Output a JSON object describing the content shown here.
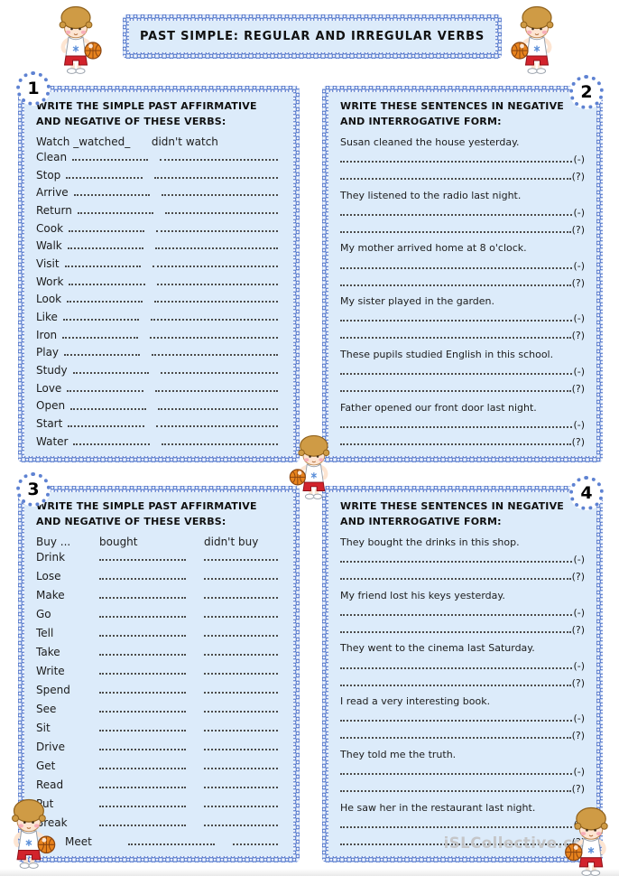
{
  "page": {
    "title": "PAST SIMPLE: REGULAR AND IRREGULAR VERBS",
    "watermark": "iSLCollective.com",
    "accent_color": "#5577cb",
    "panel_fill": "#dcebfa"
  },
  "exercises": [
    {
      "number": "1",
      "instructions": "WRITE THE SIMPLE PAST AFFIRMATIVE AND NEGATIVE OF THESE VERBS:",
      "example": {
        "verb": "Watch",
        "affirmative": "_watched_",
        "negative": "didn't watch"
      },
      "verbs": [
        "Clean",
        "Stop",
        "Arrive",
        "Return",
        "Cook",
        "Walk",
        "Visit",
        "Work",
        "Look",
        "Like",
        "Iron",
        "Play",
        "Study",
        "Love",
        "Open",
        "Start",
        "Water"
      ]
    },
    {
      "number": "2",
      "instructions": "WRITE THESE SENTENCES IN NEGATIVE AND INTERROGATIVE FORM:",
      "negative_marker": "(-)",
      "interrogative_marker": "(?)",
      "sentences": [
        "Susan cleaned the house yesterday.",
        "They listened to the radio last night.",
        "My mother arrived home at 8 o'clock.",
        "My sister played in the garden.",
        "These pupils studied English in this school.",
        "Father opened our front door last night."
      ]
    },
    {
      "number": "3",
      "instructions": "WRITE THE SIMPLE PAST AFFIRMATIVE AND NEGATIVE OF THESE VERBS:",
      "example": {
        "verb": "Buy ...",
        "affirmative": "bought",
        "negative": "didn't buy"
      },
      "verbs": [
        "Drink",
        "Lose",
        "Make",
        "Go",
        "Tell",
        "Take",
        "Write",
        "Spend",
        "See",
        "Sit",
        "Drive",
        "Get",
        "Read",
        "Put",
        "Break",
        "Meet"
      ]
    },
    {
      "number": "4",
      "instructions": "WRITE THESE SENTENCES IN NEGATIVE AND INTERROGATIVE FORM:",
      "negative_marker": "(-)",
      "interrogative_marker": "(?)",
      "sentences": [
        "They bought the drinks in this shop.",
        "My friend lost his keys yesterday.",
        "They went to the cinema last Saturday.",
        "I read a very interesting book.",
        "They told me the truth.",
        "He saw her in the restaurant last night."
      ]
    }
  ]
}
